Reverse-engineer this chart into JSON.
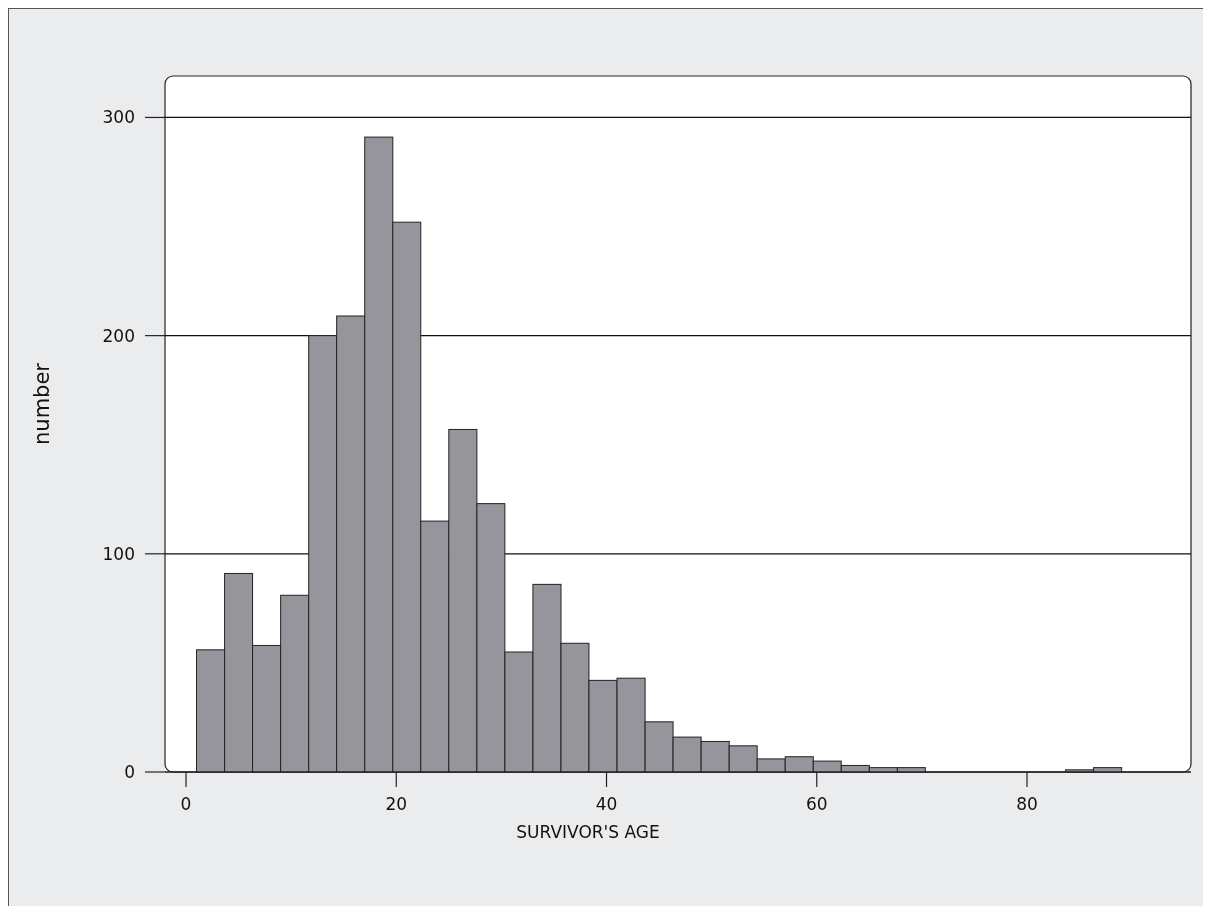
{
  "chart_data": {
    "type": "histogram",
    "xlabel": "SURVIVOR'S AGE",
    "ylabel": "number",
    "bins": [
      1,
      3.67,
      6.33,
      9,
      11.67,
      14.33,
      17,
      19.67,
      22.33,
      25,
      27.67,
      30.33,
      33,
      35.67,
      38.33,
      41,
      43.67,
      46.33,
      49,
      51.67,
      54.33,
      57,
      59.67,
      62.33,
      65,
      67.67,
      70.33,
      73,
      75.67,
      78.33,
      81,
      83.67,
      86.33,
      89
    ],
    "values": [
      56,
      91,
      58,
      81,
      200,
      209,
      291,
      252,
      115,
      157,
      123,
      55,
      86,
      59,
      42,
      43,
      23,
      16,
      14,
      12,
      6,
      7,
      5,
      3,
      2,
      2,
      0,
      0,
      0,
      0,
      0,
      1,
      2
    ],
    "color": "#96959c",
    "xlim": [
      -2,
      95.6
    ],
    "ylim": [
      0,
      319
    ],
    "xticks": [
      0,
      20,
      40,
      60,
      80
    ],
    "yticks": [
      0,
      100,
      200,
      300
    ],
    "grid": "y"
  }
}
